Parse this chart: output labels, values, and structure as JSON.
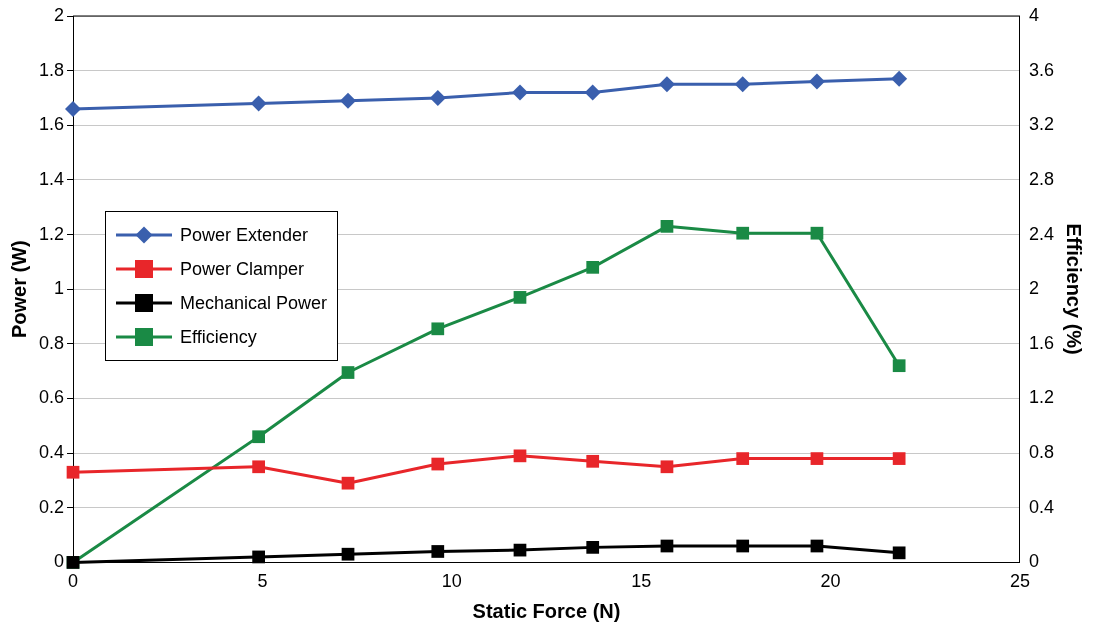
{
  "chart_data": {
    "type": "line",
    "xlabel": "Static Force (N)",
    "ylabel": "Power (W)",
    "y2label": "Efficiency (%)",
    "x": [
      0,
      4.9,
      7.26,
      9.63,
      11.8,
      13.72,
      15.68,
      17.68,
      19.64,
      21.81
    ],
    "xlim": [
      0,
      25
    ],
    "xticks": [
      0,
      5,
      10,
      15,
      20,
      25
    ],
    "ylim": [
      0,
      2
    ],
    "yticks": [
      0,
      0.2,
      0.4,
      0.6,
      0.8,
      1,
      1.2,
      1.4,
      1.6,
      1.8,
      2
    ],
    "y2lim": [
      0,
      4
    ],
    "y2ticks": [
      0,
      0.4,
      0.8,
      1.2,
      1.6,
      2,
      2.4,
      2.8,
      3.2,
      3.6,
      4
    ],
    "grid": "y",
    "legend": "left",
    "series": [
      {
        "name": "Power Extender",
        "color": "#3a5fad",
        "marker": "diamond",
        "values": [
          1.66,
          1.68,
          1.69,
          1.7,
          1.72,
          1.72,
          1.75,
          1.75,
          1.76,
          1.77
        ]
      },
      {
        "name": "Power Clamper",
        "color": "#e8262a",
        "marker": "square",
        "values": [
          0.33,
          0.35,
          0.29,
          0.36,
          0.39,
          0.37,
          0.35,
          0.38,
          0.38,
          0.38
        ]
      },
      {
        "name": "Mechanical Power",
        "color": "#000000",
        "marker": "square",
        "values": [
          0,
          0.02,
          0.03,
          0.04,
          0.045,
          0.055,
          0.06,
          0.06,
          0.06,
          0.035
        ]
      },
      {
        "name": "Efficiency",
        "color": "#1a8a45",
        "marker": "square",
        "axis": "y2",
        "values": [
          0,
          0.92,
          1.39,
          1.71,
          1.94,
          2.16,
          2.46,
          2.41,
          2.41,
          1.44
        ]
      }
    ]
  }
}
